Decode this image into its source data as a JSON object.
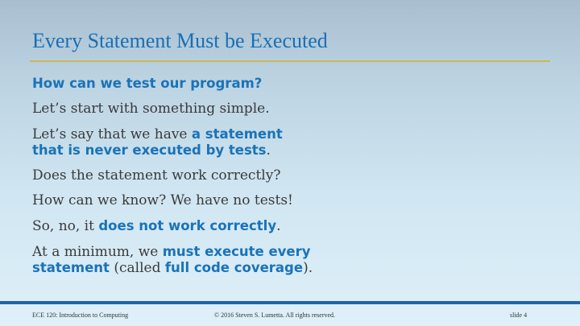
{
  "slide": {
    "title": "Every Statement Must be Executed",
    "lines": {
      "q": "How can we test our program?",
      "l1": "Let’s start with something simple.",
      "l2a": "Let’s say that we have ",
      "l2b": "a statement",
      "l2c": "that is never executed by tests",
      "l2d": ".",
      "l3": "Does the statement work correctly?",
      "l4": "How can we know?  We have no tests!",
      "l5a": "So, no, it ",
      "l5b": "does not work correctly",
      "l5c": ".",
      "l6a": "At a minimum, we ",
      "l6b": "must execute every",
      "l6c": "statement",
      "l6d": " (called ",
      "l6e": "full code coverage",
      "l6f": ")."
    }
  },
  "footer": {
    "course": "ECE 120: Introduction to Computing",
    "copyright": "© 2016 Steven S. Lumetta.  All rights reserved.",
    "slide_number": "slide 4"
  },
  "colors": {
    "title": "#1a6fb3",
    "highlight": "#1a73b8",
    "rule": "#c9b75c",
    "footer_bar": "#1d64a8"
  }
}
